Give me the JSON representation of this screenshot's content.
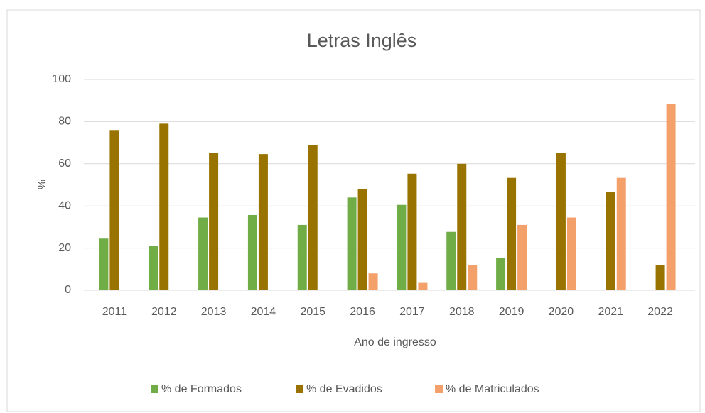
{
  "chart_data": {
    "type": "bar",
    "title": "Letras Inglês",
    "x_label": "Ano de ingresso",
    "y_label": "%",
    "categories": [
      "2011",
      "2012",
      "2013",
      "2014",
      "2015",
      "2016",
      "2017",
      "2018",
      "2019",
      "2020",
      "2021",
      "2022"
    ],
    "series": [
      {
        "name": "% de Formados",
        "color": "#70ad47",
        "values": [
          24.5,
          21,
          34.5,
          35.7,
          31,
          44,
          40.5,
          27.7,
          15.5,
          null,
          null,
          null
        ]
      },
      {
        "name": "% de Evadidos",
        "color": "#997300",
        "values": [
          76,
          79,
          65.3,
          64.6,
          68.7,
          48,
          55.3,
          60,
          53.3,
          65.3,
          46.5,
          12
        ]
      },
      {
        "name": "% de Matriculados",
        "color": "#f4a06b",
        "values": [
          null,
          null,
          null,
          null,
          null,
          8,
          3.5,
          12,
          31,
          34.5,
          53.3,
          88.3
        ]
      }
    ],
    "ylim": [
      0,
      100
    ],
    "yticks": [
      0,
      20,
      40,
      60,
      80,
      100
    ],
    "grid": true,
    "legend": "bottom"
  }
}
